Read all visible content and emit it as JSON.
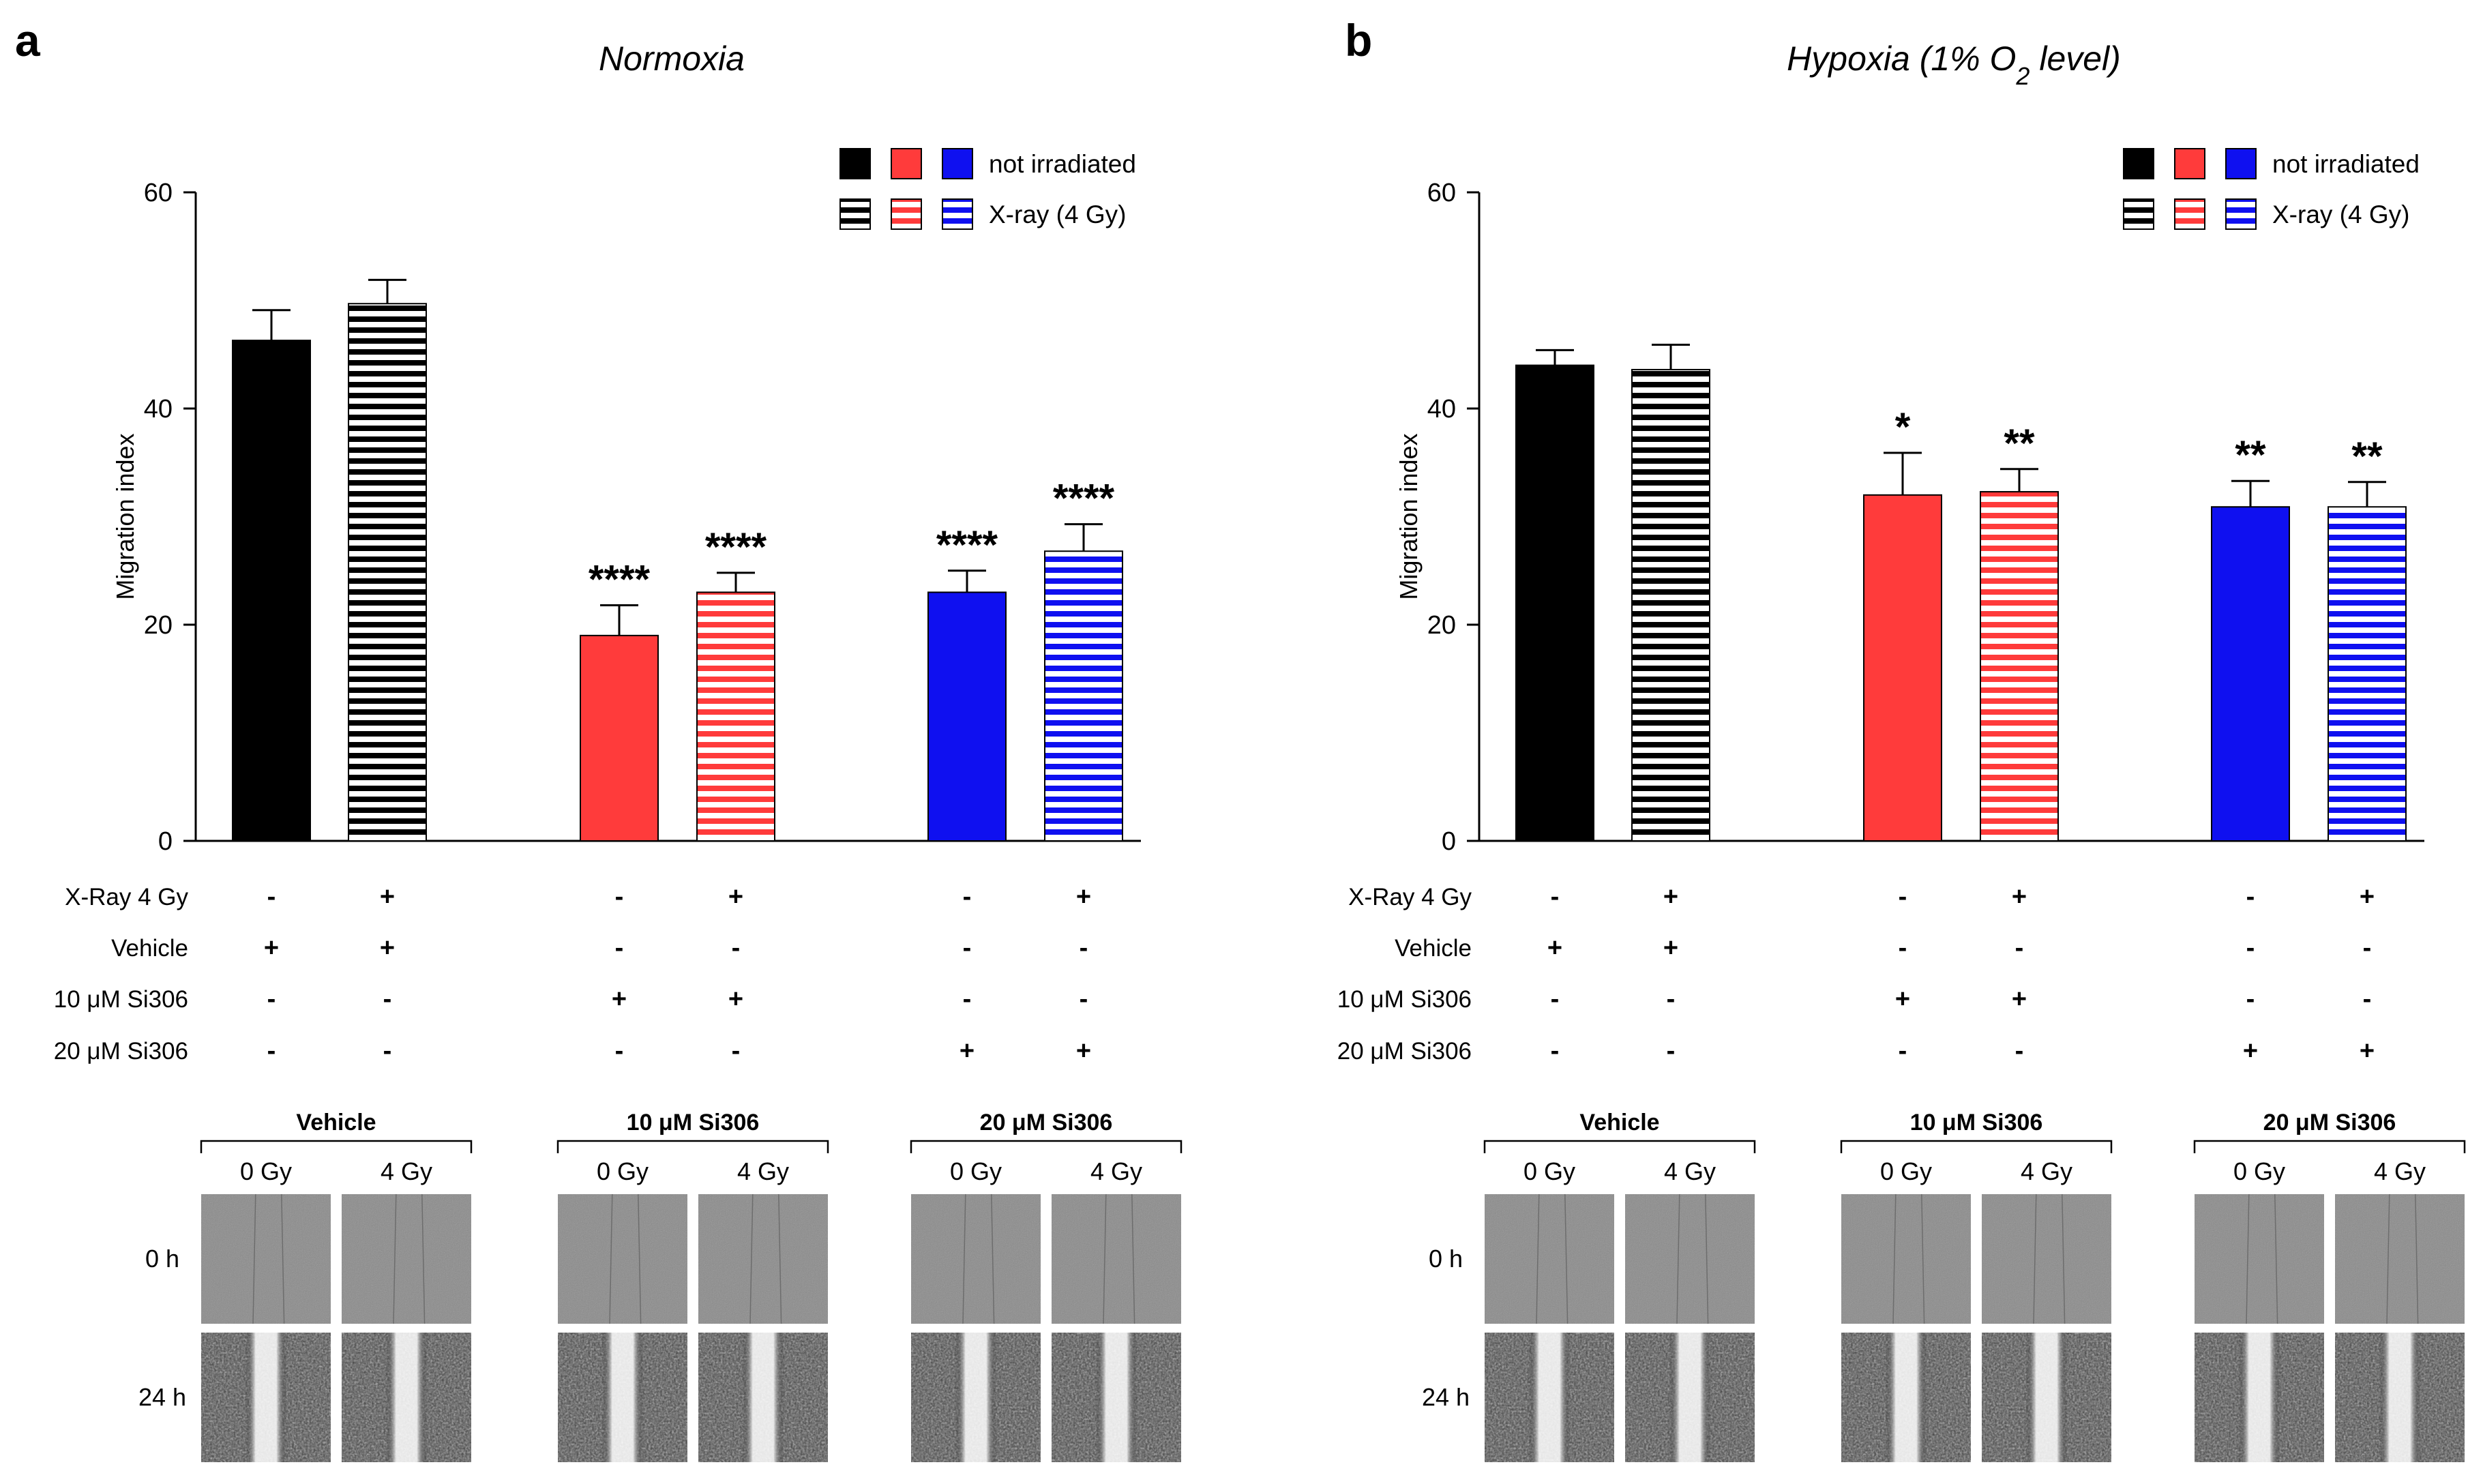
{
  "colors": {
    "black": "#000000",
    "red": "#ff3b3b",
    "blue": "#0f10f0",
    "white": "#ffffff"
  },
  "legend": {
    "not_irradiated": "not irradiated",
    "xray": "X-ray (4 Gy)"
  },
  "condition_rows": [
    {
      "label": "X-Ray 4 Gy",
      "signs": [
        "-",
        "+",
        "-",
        "+",
        "-",
        "+"
      ]
    },
    {
      "label": "Vehicle",
      "signs": [
        "+",
        "+",
        "-",
        "-",
        "-",
        "-"
      ]
    },
    {
      "label": "10 μM Si306",
      "signs": [
        "-",
        "-",
        "+",
        "+",
        "-",
        "-"
      ]
    },
    {
      "label": "20 μM Si306",
      "signs": [
        "-",
        "-",
        "-",
        "-",
        "+",
        "+"
      ]
    }
  ],
  "micrograph": {
    "groups": [
      "Vehicle",
      "10 μM Si306",
      "20 μM Si306"
    ],
    "doses": [
      "0 Gy",
      "4 Gy"
    ],
    "times": [
      "0 h",
      "24 h"
    ]
  },
  "chart_data": [
    {
      "panel": "a",
      "type": "bar",
      "title": "Normoxia",
      "ylabel": "Migration index",
      "xlabel": "",
      "ylim": [
        0,
        60
      ],
      "yticks": [
        0,
        20,
        40,
        60
      ],
      "categories": [
        "Vehicle 0 Gy",
        "Vehicle 4 Gy",
        "10 μM Si306 0 Gy",
        "10 μM Si306 4 Gy",
        "20 μM Si306 0 Gy",
        "20 μM Si306 4 Gy"
      ],
      "values": [
        46.3,
        49.7,
        19.0,
        23.0,
        23.0,
        26.8
      ],
      "errors": [
        2.8,
        2.2,
        2.8,
        1.8,
        2.0,
        2.5
      ],
      "colors": [
        "black",
        "black",
        "red",
        "red",
        "blue",
        "blue"
      ],
      "pattern": [
        "solid",
        "striped",
        "solid",
        "striped",
        "solid",
        "striped"
      ],
      "significance": [
        "",
        "",
        "****",
        "****",
        "****",
        "****"
      ]
    },
    {
      "panel": "b",
      "type": "bar",
      "title": "Hypoxia (1% O",
      "title_sub": "2",
      "title_tail": " level)",
      "ylabel": "Migration index",
      "xlabel": "",
      "ylim": [
        0,
        60
      ],
      "yticks": [
        0,
        20,
        40,
        60
      ],
      "categories": [
        "Vehicle 0 Gy",
        "Vehicle 4 Gy",
        "10 μM Si306 0 Gy",
        "10 μM Si306 4 Gy",
        "20 μM Si306 0 Gy",
        "20 μM Si306 4 Gy"
      ],
      "values": [
        44.0,
        43.6,
        32.0,
        32.3,
        30.9,
        30.9
      ],
      "errors": [
        1.4,
        2.3,
        3.9,
        2.1,
        2.4,
        2.3
      ],
      "colors": [
        "black",
        "black",
        "red",
        "red",
        "blue",
        "blue"
      ],
      "pattern": [
        "solid",
        "striped",
        "solid",
        "striped",
        "solid",
        "striped"
      ],
      "significance": [
        "",
        "",
        "*",
        "**",
        "**",
        "**"
      ]
    }
  ]
}
